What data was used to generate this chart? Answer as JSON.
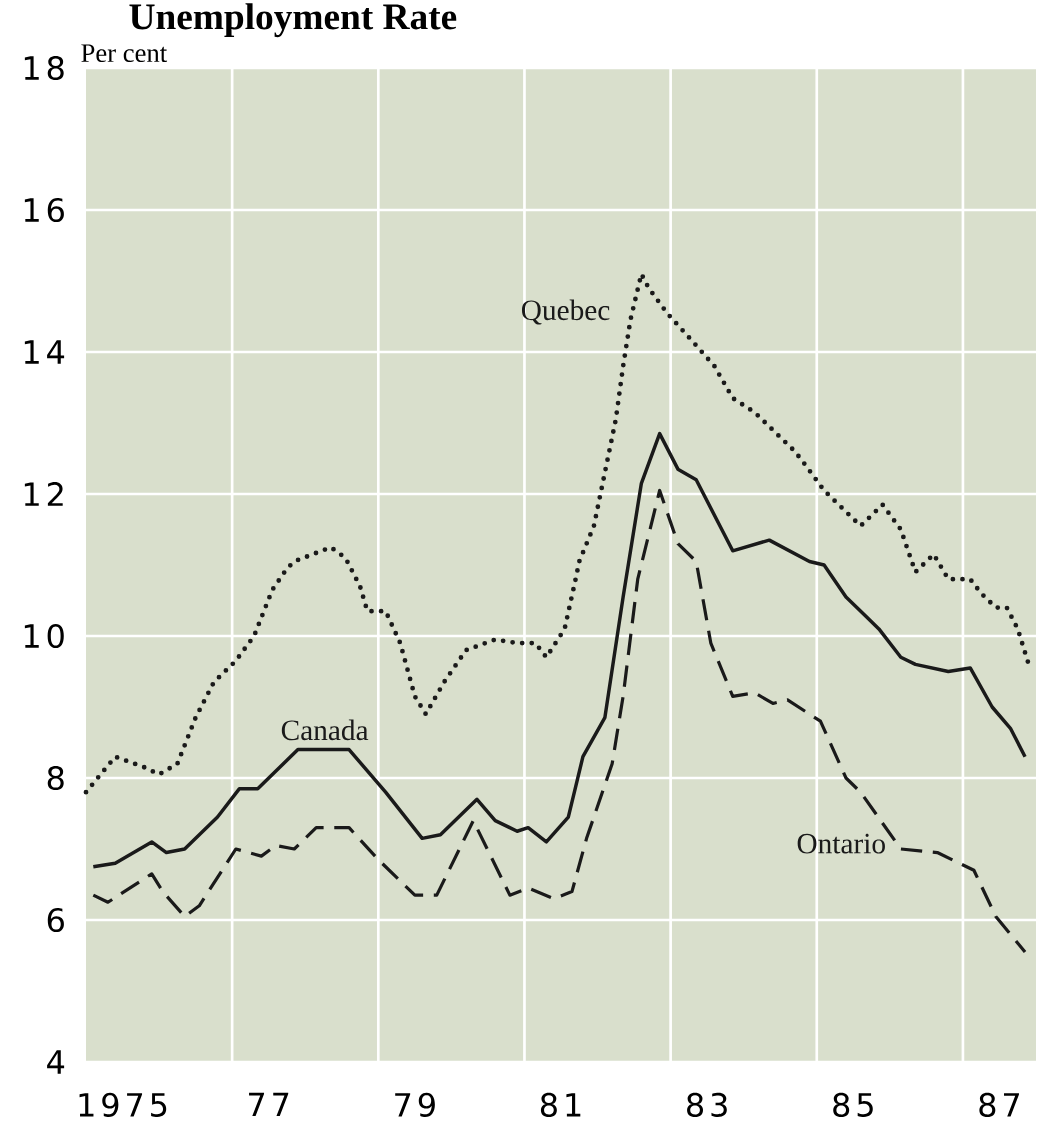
{
  "chart_data": {
    "type": "line",
    "title": "Unemployment Rate",
    "ylabel": "Per cent",
    "xlim": [
      1974.5,
      1987.5
    ],
    "ylim": [
      4,
      18
    ],
    "xticks": [
      1975,
      {
        "value": 1977,
        "label": "77"
      },
      {
        "value": 1979,
        "label": "79"
      },
      {
        "value": 1981,
        "label": "81"
      },
      {
        "value": 1983,
        "label": "83"
      },
      {
        "value": 1985,
        "label": "85"
      },
      {
        "value": 1987,
        "label": "87"
      },
      {
        "value": 1976.5,
        "label": null
      },
      {
        "value": 1978.5,
        "label": null
      },
      {
        "value": 1980.5,
        "label": null
      },
      {
        "value": 1982.5,
        "label": null
      },
      {
        "value": 1984.5,
        "label": null
      },
      {
        "value": 1986.5,
        "label": null
      }
    ],
    "yticks": [
      4,
      6,
      8,
      10,
      12,
      14,
      16,
      18
    ],
    "grid": true,
    "legend": false,
    "marker": "none",
    "series": [
      {
        "name": "Quebec",
        "color": "#1a1a1a",
        "line_style": "dotted",
        "x": [
          1974.5,
          1974.9,
          1975.3,
          1975.5,
          1975.75,
          1976.0,
          1976.25,
          1976.55,
          1976.8,
          1977.05,
          1977.25,
          1977.35,
          1977.85,
          1978.05,
          1978.25,
          1978.35,
          1978.6,
          1978.8,
          1979.0,
          1979.15,
          1979.4,
          1979.7,
          1980.1,
          1980.4,
          1980.65,
          1980.8,
          1981.05,
          1981.2,
          1981.25,
          1981.45,
          1981.6,
          1981.75,
          1981.85,
          1981.95,
          1982.1,
          1982.2,
          1982.45,
          1982.8,
          1983.1,
          1983.35,
          1983.65,
          1983.9,
          1984.2,
          1984.35,
          1984.6,
          1984.9,
          1985.1,
          1985.4,
          1985.65,
          1985.85,
          1986.1,
          1986.3,
          1986.6,
          1986.75,
          1986.95,
          1987.1,
          1987.25,
          1987.4
        ],
        "values": [
          7.8,
          8.3,
          8.15,
          8.05,
          8.2,
          8.85,
          9.35,
          9.65,
          10.0,
          10.65,
          10.95,
          11.05,
          11.25,
          11.1,
          10.7,
          10.35,
          10.35,
          9.9,
          9.15,
          8.9,
          9.35,
          9.8,
          9.95,
          9.9,
          9.9,
          9.7,
          10.1,
          10.8,
          11.05,
          11.55,
          12.3,
          13.05,
          13.8,
          14.45,
          15.1,
          14.9,
          14.55,
          14.15,
          13.8,
          13.35,
          13.15,
          12.9,
          12.6,
          12.4,
          12.05,
          11.75,
          11.55,
          11.85,
          11.5,
          10.9,
          11.15,
          10.8,
          10.8,
          10.6,
          10.4,
          10.4,
          10.1,
          9.6
        ]
      },
      {
        "name": "Canada",
        "color": "#1a1a1a",
        "line_style": "solid",
        "x": [
          1974.6,
          1974.9,
          1975.4,
          1975.6,
          1975.85,
          1976.3,
          1976.6,
          1976.85,
          1977.4,
          1978.1,
          1978.6,
          1979.1,
          1979.35,
          1979.85,
          1980.1,
          1980.4,
          1980.55,
          1980.8,
          1981.1,
          1981.3,
          1981.6,
          1981.85,
          1982.1,
          1982.35,
          1982.6,
          1982.85,
          1983.35,
          1983.85,
          1984.4,
          1984.6,
          1984.9,
          1985.2,
          1985.35,
          1985.65,
          1985.85,
          1986.3,
          1986.6,
          1986.9,
          1987.15,
          1987.35
        ],
        "values": [
          6.75,
          6.8,
          7.1,
          6.95,
          7.0,
          7.45,
          7.85,
          7.85,
          8.4,
          8.4,
          7.8,
          7.15,
          7.2,
          7.7,
          7.4,
          7.25,
          7.3,
          7.1,
          7.45,
          8.3,
          8.85,
          10.55,
          12.15,
          12.85,
          12.35,
          12.2,
          11.2,
          11.35,
          11.05,
          11.0,
          10.55,
          10.25,
          10.1,
          9.7,
          9.6,
          9.5,
          9.55,
          9.0,
          8.7,
          8.3
        ]
      },
      {
        "name": "Ontario",
        "color": "#1a1a1a",
        "line_style": "dashed",
        "x": [
          1974.6,
          1974.8,
          1975.4,
          1975.55,
          1975.85,
          1976.05,
          1976.55,
          1976.9,
          1977.1,
          1977.35,
          1977.65,
          1978.1,
          1978.5,
          1979.0,
          1979.3,
          1979.8,
          1980.3,
          1980.55,
          1980.9,
          1981.15,
          1981.35,
          1981.7,
          1981.85,
          1982.05,
          1982.35,
          1982.6,
          1982.85,
          1983.05,
          1983.35,
          1983.65,
          1983.9,
          1984.1,
          1984.55,
          1984.9,
          1985.1,
          1985.65,
          1986.15,
          1986.65,
          1986.95,
          1987.35
        ],
        "values": [
          6.35,
          6.25,
          6.65,
          6.4,
          6.05,
          6.2,
          7.0,
          6.9,
          7.05,
          7.0,
          7.3,
          7.3,
          6.85,
          6.35,
          6.35,
          7.4,
          6.35,
          6.45,
          6.3,
          6.4,
          7.15,
          8.2,
          9.15,
          10.8,
          12.05,
          11.3,
          11.05,
          9.9,
          9.15,
          9.2,
          9.05,
          9.1,
          8.8,
          8.0,
          7.8,
          7.0,
          6.95,
          6.7,
          6.05,
          5.55
        ]
      }
    ]
  }
}
